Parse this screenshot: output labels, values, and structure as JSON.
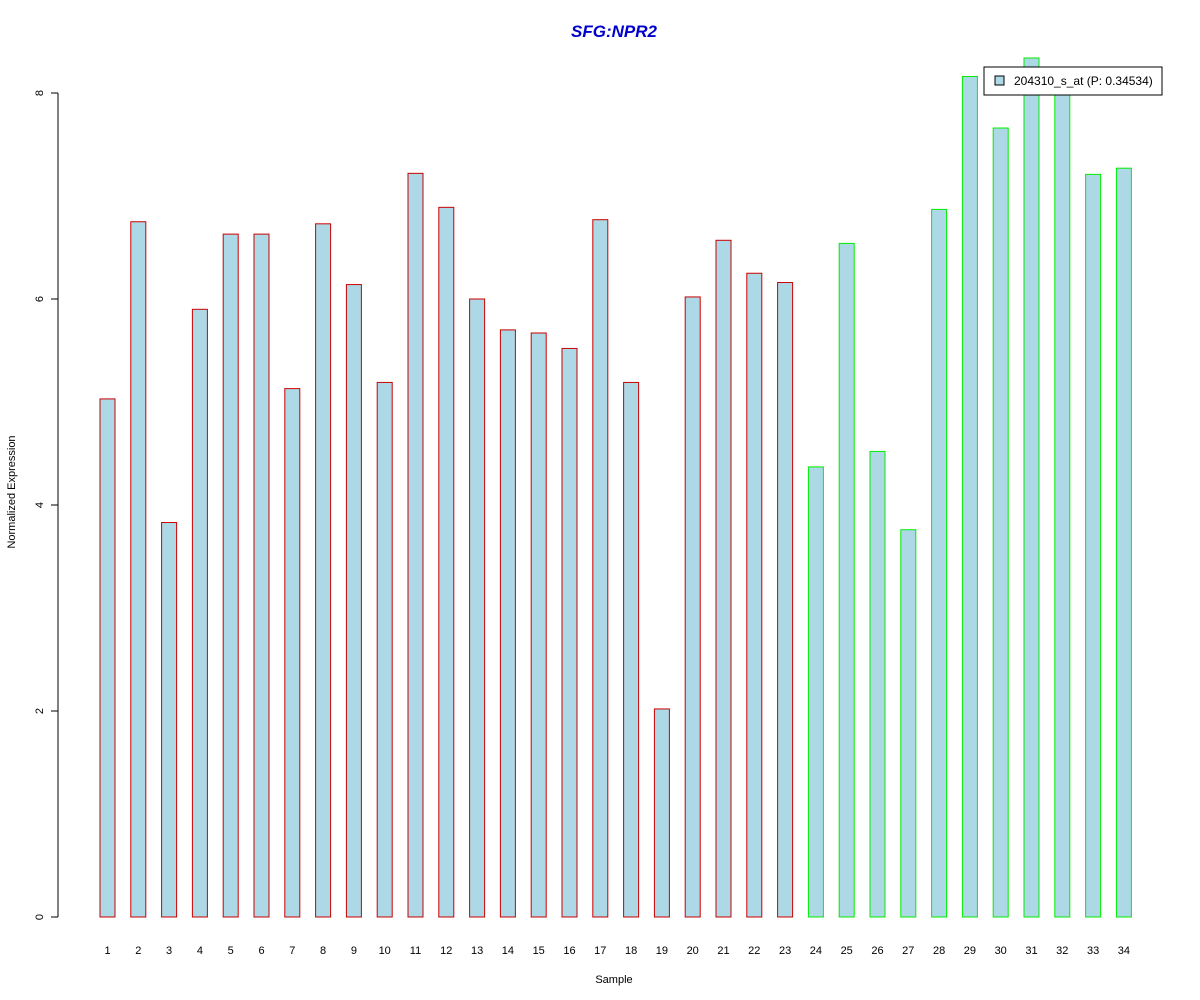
{
  "chart_data": {
    "type": "bar",
    "title": "SFG:NPR2",
    "xlabel": "Sample",
    "ylabel": "Normalized Expression",
    "ylim": [
      0,
      8.3
    ],
    "yticks": [
      0,
      2,
      4,
      6,
      8
    ],
    "categories": [
      "1",
      "2",
      "3",
      "4",
      "5",
      "6",
      "7",
      "8",
      "9",
      "10",
      "11",
      "12",
      "13",
      "14",
      "15",
      "16",
      "17",
      "18",
      "19",
      "20",
      "21",
      "22",
      "23",
      "24",
      "25",
      "26",
      "27",
      "28",
      "29",
      "30",
      "31",
      "32",
      "33",
      "34"
    ],
    "series": [
      {
        "name": "204310_s_at (P: 0.34534)",
        "values": [
          5.03,
          6.75,
          3.83,
          5.9,
          6.63,
          6.63,
          5.13,
          6.73,
          6.14,
          5.19,
          7.22,
          6.89,
          6.0,
          5.7,
          5.67,
          5.52,
          6.77,
          5.19,
          2.02,
          6.02,
          6.57,
          6.25,
          6.16,
          4.37,
          6.54,
          4.52,
          3.76,
          6.87,
          8.16,
          7.66,
          8.34,
          8.1,
          7.21,
          7.27
        ]
      }
    ],
    "group_sizes": [
      23,
      11
    ],
    "colors": {
      "fill": "#add8e6",
      "group1_border": "#cc0000",
      "group2_border": "#00ee00",
      "title": "#0000cc"
    },
    "legend_placement": "top-right",
    "grid": false
  }
}
